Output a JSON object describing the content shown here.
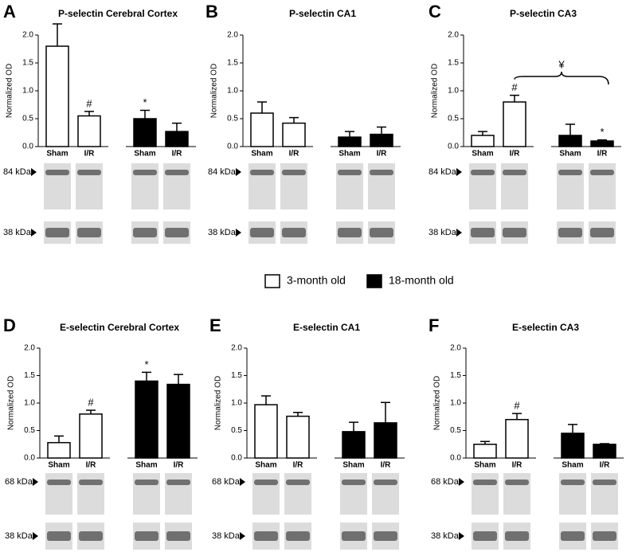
{
  "legend": [
    {
      "name": "3-month old",
      "color": "#ffffff"
    },
    {
      "name": "18-month old",
      "color": "#000000"
    }
  ],
  "chart_data": [
    {
      "type": "bar",
      "label": "A",
      "title": "P-selectin Cerebral Cortex",
      "ylabel": "Normalized OD",
      "categories": [
        "Sham",
        "I/R",
        "Sham",
        "I/R"
      ],
      "values": [
        1.8,
        0.55,
        0.5,
        0.27
      ],
      "errors": [
        0.4,
        0.08,
        0.15,
        0.15
      ],
      "colors": [
        "#ffffff",
        "#ffffff",
        "#000000",
        "#000000"
      ],
      "value_annotations": [
        null,
        "#",
        "*",
        null
      ],
      "ylim": [
        0,
        2
      ],
      "yticks": [
        {
          "value": 0,
          "label": "0.0"
        },
        0.5,
        {
          "value": 1,
          "label": "1.0"
        },
        1.5,
        {
          "value": 2,
          "label": "2.0"
        }
      ],
      "blot_labels": [
        "84 kDa",
        "38 kDa"
      ]
    },
    {
      "type": "bar",
      "label": "B",
      "title": "P-selectin CA1",
      "ylabel": "Normalized OD",
      "categories": [
        "Sham",
        "I/R",
        "Sham",
        "I/R"
      ],
      "values": [
        0.6,
        0.42,
        0.17,
        0.22
      ],
      "errors": [
        0.2,
        0.1,
        0.1,
        0.13
      ],
      "colors": [
        "#ffffff",
        "#ffffff",
        "#000000",
        "#000000"
      ],
      "value_annotations": [
        null,
        null,
        null,
        null
      ],
      "ylim": [
        0,
        2
      ],
      "yticks": [
        {
          "value": 0,
          "label": "0.0"
        },
        0.5,
        {
          "value": 1,
          "label": "1.0"
        },
        1.5,
        {
          "value": 2,
          "label": "2.0"
        }
      ],
      "blot_labels": [
        "84 kDa",
        "38 kDa"
      ]
    },
    {
      "type": "bar",
      "label": "C",
      "title": "P-selectin  CA3",
      "ylabel": "Normalized OD",
      "categories": [
        "Sham",
        "I/R",
        "Sham",
        "I/R"
      ],
      "values": [
        0.2,
        0.8,
        0.2,
        0.1
      ],
      "errors": [
        0.07,
        0.12,
        0.2,
        0.02
      ],
      "colors": [
        "#ffffff",
        "#ffffff",
        "#000000",
        "#000000"
      ],
      "value_annotations": [
        null,
        "#",
        null,
        "*"
      ],
      "bracket_label": "¥",
      "ylim": [
        0,
        2
      ],
      "yticks": [
        {
          "value": 0,
          "label": "0.0"
        },
        0.5,
        {
          "value": 1,
          "label": "1.0"
        },
        1.5,
        {
          "value": 2,
          "label": "2.0"
        }
      ],
      "blot_labels": [
        "84 kDa",
        "38 kDa"
      ]
    },
    {
      "type": "bar",
      "label": "D",
      "title": "E-selectin Cerebral Cortex",
      "ylabel": "Normalized OD",
      "categories": [
        "Sham",
        "I/R",
        "Sham",
        "I/R"
      ],
      "values": [
        0.28,
        0.8,
        1.4,
        1.34
      ],
      "errors": [
        0.12,
        0.07,
        0.16,
        0.18
      ],
      "colors": [
        "#ffffff",
        "#ffffff",
        "#000000",
        "#000000"
      ],
      "value_annotations": [
        null,
        "#",
        "*",
        null
      ],
      "ylim": [
        0,
        2
      ],
      "yticks": [
        {
          "value": 0,
          "label": "0.0"
        },
        0.5,
        {
          "value": 1,
          "label": "1.0"
        },
        1.5,
        {
          "value": 2,
          "label": "2.0"
        }
      ],
      "blot_labels": [
        "68 kDa",
        "38 kDa"
      ]
    },
    {
      "type": "bar",
      "label": "E",
      "title": "E-selectin CA1",
      "ylabel": "Normalized OD",
      "categories": [
        "Sham",
        "I/R",
        "Sham",
        "I/R"
      ],
      "values": [
        0.97,
        0.76,
        0.48,
        0.64
      ],
      "errors": [
        0.16,
        0.07,
        0.17,
        0.37
      ],
      "colors": [
        "#ffffff",
        "#ffffff",
        "#000000",
        "#000000"
      ],
      "value_annotations": [
        null,
        null,
        null,
        null
      ],
      "ylim": [
        0,
        2
      ],
      "yticks": [
        {
          "value": 0,
          "label": "0.0"
        },
        0.5,
        {
          "value": 1,
          "label": "1.0"
        },
        1.5,
        {
          "value": 2,
          "label": "2.0"
        }
      ],
      "blot_labels": [
        "68 kDa",
        "38 kDa"
      ]
    },
    {
      "type": "bar",
      "label": "F",
      "title": "E-selectin CA3",
      "ylabel": "Normalized OD",
      "categories": [
        "Sham",
        "I/R",
        "Sham",
        "I/R"
      ],
      "values": [
        0.25,
        0.7,
        0.45,
        0.25
      ],
      "errors": [
        0.05,
        0.11,
        0.16,
        0.01
      ],
      "colors": [
        "#ffffff",
        "#ffffff",
        "#000000",
        "#000000"
      ],
      "value_annotations": [
        null,
        "#",
        null,
        null
      ],
      "ylim": [
        0,
        2
      ],
      "yticks": [
        {
          "value": 0,
          "label": "0.0"
        },
        0.5,
        {
          "value": 1,
          "label": "1.0"
        },
        1.5,
        {
          "value": 2,
          "label": "2.0"
        }
      ],
      "blot_labels": [
        "68 kDa",
        "38 kDa"
      ]
    }
  ]
}
